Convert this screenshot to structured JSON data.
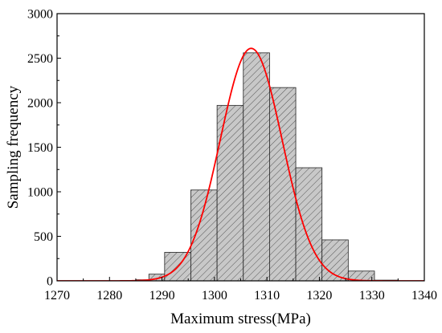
{
  "chart_data": {
    "type": "bar",
    "title": "",
    "xlabel": "Maximum stress(MPa)",
    "ylabel": "Sampling frequency",
    "xlim": [
      1270,
      1340
    ],
    "ylim": [
      0,
      3000
    ],
    "xticks": [
      1270,
      1280,
      1290,
      1300,
      1310,
      1320,
      1330,
      1340
    ],
    "yticks": [
      0,
      500,
      1000,
      1500,
      2000,
      2500,
      3000
    ],
    "grid": false,
    "legend": "none",
    "bins": [
      {
        "x0": 1282.5,
        "x1": 1285.0,
        "value": 3
      },
      {
        "x0": 1285.0,
        "x1": 1287.5,
        "value": 12
      },
      {
        "x0": 1287.5,
        "x1": 1290.5,
        "value": 75
      },
      {
        "x0": 1290.5,
        "x1": 1295.5,
        "value": 320
      },
      {
        "x0": 1295.5,
        "x1": 1300.5,
        "value": 1020
      },
      {
        "x0": 1300.5,
        "x1": 1305.5,
        "value": 1970
      },
      {
        "x0": 1305.5,
        "x1": 1310.5,
        "value": 2560
      },
      {
        "x0": 1310.5,
        "x1": 1315.5,
        "value": 2170
      },
      {
        "x0": 1315.5,
        "x1": 1320.5,
        "value": 1270
      },
      {
        "x0": 1320.5,
        "x1": 1325.5,
        "value": 460
      },
      {
        "x0": 1325.5,
        "x1": 1330.5,
        "value": 110
      },
      {
        "x0": 1330.5,
        "x1": 1335.0,
        "value": 8
      }
    ],
    "fit_curve": {
      "type": "normal",
      "mean": 1307,
      "std": 5.9,
      "peak": 2610
    },
    "colors": {
      "bar_fill": "#c8c8c8",
      "bar_hatch": "#555555",
      "bar_edge": "#222222",
      "curve": "#ff0000",
      "axis": "#000000"
    }
  }
}
